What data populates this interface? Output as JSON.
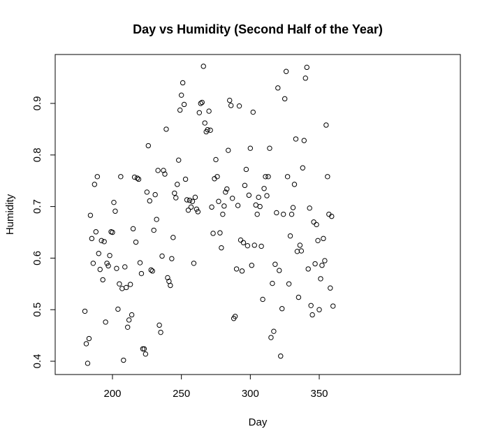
{
  "chart_data": {
    "type": "scatter",
    "title": "Day vs Humidity (Second Half of the Year)",
    "xlabel": "Day",
    "ylabel": "Humidity",
    "xlim": [
      180,
      360
    ],
    "ylim": [
      0.4,
      0.97
    ],
    "xticks": [
      200,
      250,
      300,
      350
    ],
    "yticks": [
      0.4,
      0.5,
      0.6,
      0.7,
      0.8,
      0.9
    ],
    "grid": false,
    "legend": "none",
    "point_color": "#000000",
    "x": [
      180,
      181,
      182,
      183,
      184,
      185,
      186,
      187,
      188,
      189,
      190,
      191,
      192,
      193,
      194,
      195,
      196,
      197,
      198,
      199,
      200,
      201,
      202,
      203,
      204,
      205,
      206,
      207,
      208,
      209,
      210,
      211,
      212,
      213,
      214,
      215,
      216,
      217,
      218,
      219,
      220,
      221,
      222,
      223,
      224,
      225,
      226,
      227,
      228,
      229,
      230,
      231,
      232,
      233,
      234,
      235,
      236,
      237,
      238,
      239,
      240,
      241,
      242,
      243,
      244,
      245,
      246,
      247,
      248,
      249,
      250,
      251,
      252,
      253,
      254,
      255,
      256,
      257,
      258,
      259,
      260,
      261,
      262,
      263,
      264,
      265,
      266,
      267,
      268,
      269,
      270,
      271,
      272,
      273,
      274,
      275,
      276,
      277,
      278,
      279,
      280,
      281,
      282,
      283,
      284,
      285,
      286,
      287,
      288,
      289,
      290,
      291,
      292,
      293,
      294,
      295,
      296,
      297,
      298,
      299,
      300,
      301,
      302,
      303,
      304,
      305,
      306,
      307,
      308,
      309,
      310,
      311,
      312,
      313,
      314,
      315,
      316,
      317,
      318,
      319,
      320,
      321,
      322,
      323,
      324,
      325,
      326,
      327,
      328,
      329,
      330,
      331,
      332,
      333,
      334,
      335,
      336,
      337,
      338,
      339,
      340,
      341,
      342,
      343,
      344,
      345,
      346,
      347,
      348,
      349,
      350,
      351,
      352,
      353,
      354,
      355,
      356,
      357,
      358,
      359,
      360
    ],
    "y": [
      0.497,
      0.434,
      0.396,
      0.444,
      0.683,
      0.638,
      0.59,
      0.743,
      0.651,
      0.758,
      0.609,
      0.578,
      0.634,
      0.558,
      0.632,
      0.476,
      0.59,
      0.585,
      0.605,
      0.651,
      0.65,
      0.708,
      0.691,
      0.58,
      0.501,
      0.55,
      0.758,
      0.541,
      0.402,
      0.583,
      0.543,
      0.466,
      0.48,
      0.549,
      0.49,
      0.657,
      0.757,
      0.631,
      0.755,
      0.753,
      0.591,
      0.57,
      0.424,
      0.424,
      0.414,
      0.728,
      0.818,
      0.711,
      0.577,
      0.575,
      0.654,
      0.723,
      0.675,
      0.77,
      0.47,
      0.456,
      0.604,
      0.77,
      0.763,
      0.85,
      0.562,
      0.555,
      0.547,
      0.599,
      0.64,
      0.726,
      0.717,
      0.743,
      0.79,
      0.887,
      0.916,
      0.94,
      0.898,
      0.753,
      0.713,
      0.693,
      0.712,
      0.699,
      0.71,
      0.59,
      0.718,
      0.695,
      0.69,
      0.882,
      0.9,
      0.902,
      0.972,
      0.862,
      0.845,
      0.849,
      0.885,
      0.848,
      0.699,
      0.648,
      0.754,
      0.791,
      0.758,
      0.71,
      0.649,
      0.62,
      0.685,
      0.701,
      0.728,
      0.734,
      0.809,
      0.906,
      0.896,
      0.716,
      0.483,
      0.487,
      0.579,
      0.702,
      0.895,
      0.635,
      0.575,
      0.63,
      0.741,
      0.772,
      0.624,
      0.722,
      0.813,
      0.586,
      0.883,
      0.625,
      0.703,
      0.685,
      0.718,
      0.7,
      0.623,
      0.52,
      0.735,
      0.758,
      0.721,
      0.758,
      0.813,
      0.446,
      0.551,
      0.458,
      0.588,
      0.688,
      0.93,
      0.576,
      0.41,
      0.502,
      0.685,
      0.909,
      0.962,
      0.758,
      0.55,
      0.643,
      0.685,
      0.698,
      0.743,
      0.831,
      0.613,
      0.524,
      0.625,
      0.614,
      0.775,
      0.828,
      0.949,
      0.97,
      0.579,
      0.697,
      0.508,
      0.49,
      0.67,
      0.589,
      0.665,
      0.634,
      0.5,
      0.56,
      0.586,
      0.638,
      0.595,
      0.858,
      0.758,
      0.685,
      0.542,
      0.681,
      0.507
    ]
  }
}
